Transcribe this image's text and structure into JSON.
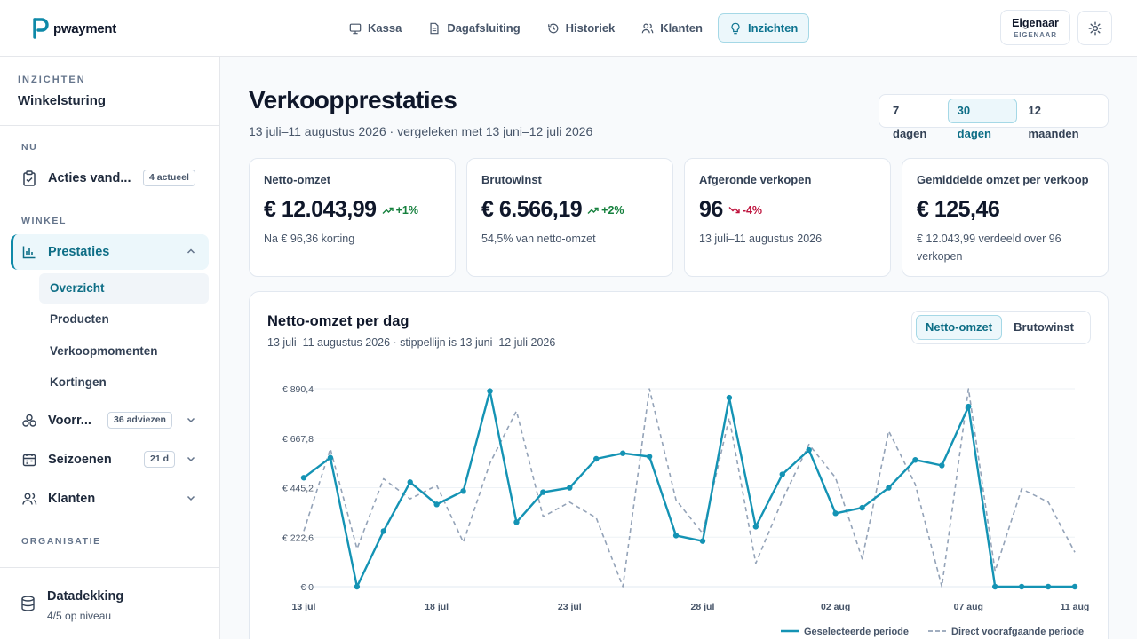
{
  "brand": {
    "name": "pwayment",
    "accent": "#0e89a8"
  },
  "nav": [
    {
      "label": "Kassa",
      "icon": "monitor-icon",
      "active": false
    },
    {
      "label": "Dagafsluiting",
      "icon": "document-icon",
      "active": false
    },
    {
      "label": "Historiek",
      "icon": "history-icon",
      "active": false
    },
    {
      "label": "Klanten",
      "icon": "users-icon",
      "active": false
    },
    {
      "label": "Inzichten",
      "icon": "lightbulb-icon",
      "active": true
    }
  ],
  "user": {
    "name": "Eigenaar",
    "role": "EIGENAAR"
  },
  "sidebar": {
    "overline": "INZICHTEN",
    "title": "Winkelsturing",
    "section_now": "NU",
    "actions": {
      "label": "Acties vand...",
      "badge": "4 actueel"
    },
    "section_shop": "WINKEL",
    "performance": {
      "label": "Prestaties"
    },
    "sub_items": [
      "Overzicht",
      "Producten",
      "Verkoopmomenten",
      "Kortingen"
    ],
    "stock": {
      "label": "Voorr...",
      "badge": "36 adviezen"
    },
    "seasons": {
      "label": "Seizoenen",
      "badge": "21 d"
    },
    "customers": {
      "label": "Klanten"
    },
    "section_org": "ORGANISATIE",
    "footer": {
      "title": "Datadekking",
      "subtitle": "4/5 op niveau"
    }
  },
  "page": {
    "title": "Verkoopprestaties",
    "subtitle": "13 juli–11 augustus 2026 · vergeleken met 13 juni–12 juli 2026",
    "ranges": [
      "7 dagen",
      "30 dagen",
      "12 maanden"
    ],
    "active_range": "30 dagen"
  },
  "kpis": [
    {
      "label": "Netto-omzet",
      "value": "€ 12.043,99",
      "delta": "+1%",
      "direction": "up",
      "note": "Na € 96,36 korting"
    },
    {
      "label": "Brutowinst",
      "value": "€ 6.566,19",
      "delta": "+2%",
      "direction": "up",
      "note": "54,5% van netto-omzet"
    },
    {
      "label": "Afgeronde verkopen",
      "value": "96",
      "delta": "-4%",
      "direction": "down",
      "note": "13 juli–11 augustus 2026"
    },
    {
      "label": "Gemiddelde omzet per verkoop",
      "value": "€ 125,46",
      "delta": "",
      "direction": "",
      "note": "€ 12.043,99 verdeeld over 96 verkopen"
    }
  ],
  "chart_card": {
    "title": "Netto-omzet per dag",
    "subtitle": "13 juli–11 augustus 2026 · stippellijn is 13 juni–12 juli 2026",
    "metrics": [
      "Netto-omzet",
      "Brutowinst"
    ],
    "active_metric": "Netto-omzet"
  },
  "chart_data": {
    "type": "line",
    "ylim": [
      0,
      890.4
    ],
    "y_ticks": [
      "€ 0",
      "€ 222,6",
      "€ 445,2",
      "€ 667,8",
      "€ 890,4"
    ],
    "y_tick_values": [
      0,
      222.6,
      445.2,
      667.8,
      890.4
    ],
    "x_ticks": [
      "13 jul",
      "18 jul",
      "23 jul",
      "28 jul",
      "02 aug",
      "07 aug",
      "11 aug"
    ],
    "x_tick_index": [
      0,
      5,
      10,
      15,
      20,
      25,
      29
    ],
    "series": [
      {
        "name": "Geselecteerde periode",
        "style": "solid",
        "color": "#1493b4",
        "values": [
          490,
          580,
          0,
          250,
          470,
          370,
          430,
          880,
          290,
          425,
          445,
          575,
          600,
          585,
          230,
          205,
          850,
          270,
          505,
          615,
          330,
          355,
          445,
          570,
          545,
          810,
          0,
          0,
          0,
          0
        ]
      },
      {
        "name": "Direct voorafgaande periode",
        "style": "dashed",
        "color": "#94a3b8",
        "values": [
          250,
          620,
          170,
          485,
          395,
          455,
          200,
          555,
          790,
          315,
          380,
          310,
          0,
          890,
          390,
          240,
          760,
          105,
          390,
          640,
          490,
          125,
          700,
          460,
          0,
          890,
          70,
          440,
          380,
          155
        ]
      }
    ]
  }
}
